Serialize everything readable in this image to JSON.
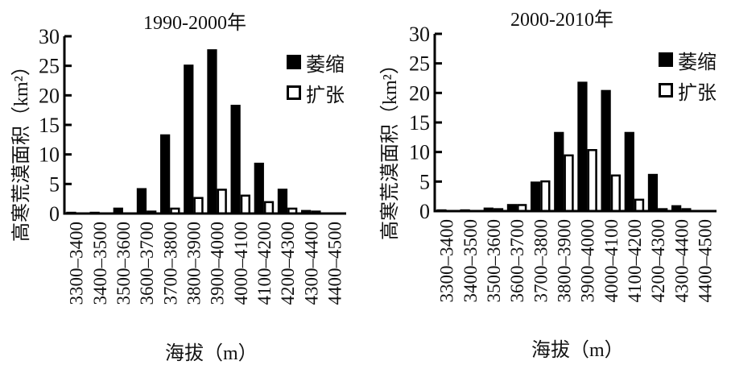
{
  "chart_data": [
    {
      "type": "bar",
      "title": "1990-2000年",
      "xlabel": "海拔（m）",
      "ylabel": "高寒荒漠面积（km²）",
      "ylim": [
        0,
        30
      ],
      "yticks": [
        0,
        5,
        10,
        15,
        20,
        25,
        30
      ],
      "grid": false,
      "legend_position": "upper right",
      "categories": [
        "3300-3400",
        "3400-3500",
        "3500-3600",
        "3600-3700",
        "3700-3800",
        "3800-3900",
        "3900-4000",
        "4000-4100",
        "4100-4200",
        "4200-4300",
        "4300-4400",
        "4400-4500"
      ],
      "series": [
        {
          "name": "萎缩",
          "style": "filled",
          "values": [
            0.3,
            0.3,
            1.0,
            4.3,
            13.4,
            25.2,
            27.8,
            18.4,
            8.6,
            4.2,
            0.6,
            0
          ]
        },
        {
          "name": "扩张",
          "style": "hollow",
          "values": [
            0,
            0,
            0,
            0.5,
            1.0,
            2.8,
            4.2,
            3.2,
            2.1,
            1.0,
            0.5,
            0
          ]
        }
      ]
    },
    {
      "type": "bar",
      "title": "2000-2010年",
      "xlabel": "海拔（m）",
      "ylabel": "高寒荒漠面积（km²）",
      "ylim": [
        0,
        30
      ],
      "yticks": [
        0,
        5,
        10,
        15,
        20,
        25,
        30
      ],
      "grid": false,
      "legend_position": "upper right",
      "categories": [
        "3300-3400",
        "3400-3500",
        "3500-3600",
        "3600-3700",
        "3700-3800",
        "3800-3900",
        "3900-4000",
        "4000-4100",
        "4100-4200",
        "4200-4300",
        "4300-4400",
        "4400-4500"
      ],
      "series": [
        {
          "name": "萎缩",
          "style": "filled",
          "values": [
            0.3,
            0.3,
            0.6,
            1.2,
            5.0,
            13.4,
            21.9,
            20.5,
            13.4,
            6.3,
            1.0,
            0
          ]
        },
        {
          "name": "扩张",
          "style": "hollow",
          "values": [
            0,
            0,
            0.5,
            1.2,
            5.2,
            9.6,
            10.5,
            6.2,
            2.1,
            0.5,
            0.5,
            0
          ]
        }
      ]
    }
  ],
  "charts": [
    {
      "title": "1990-2000年",
      "ylabel": "高寒荒漠面积（km²）",
      "xlabel": "海拔（m）",
      "legend": [
        "萎缩",
        "扩张"
      ]
    },
    {
      "title": "2000-2010年",
      "ylabel": "高寒荒漠面积（km²）",
      "xlabel": "海拔（m）",
      "legend": [
        "萎缩",
        "扩张"
      ]
    }
  ]
}
